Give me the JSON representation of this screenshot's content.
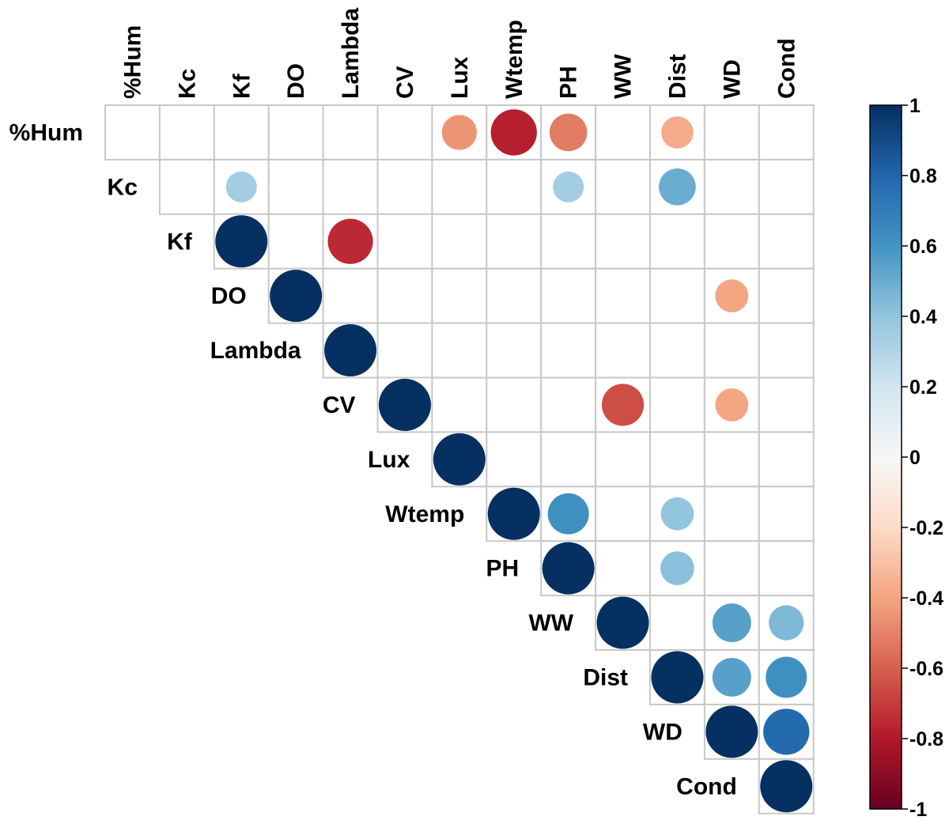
{
  "chart_data": {
    "type": "heatmap",
    "subtype": "correlation-circles-upper-triangle",
    "variables": [
      "%Hum",
      "Kc",
      "Kf",
      "DO",
      "Lambda",
      "CV",
      "Lux",
      "Wtemp",
      "PH",
      "WW",
      "Dist",
      "WD",
      "Cond"
    ],
    "row_labels": [
      "%Hum",
      "Kc",
      "Kf",
      "DO",
      "Lambda",
      "CV",
      "Lux",
      "Wtemp",
      "PH",
      "WW",
      "Dist",
      "WD",
      "Cond"
    ],
    "column_labels": [
      "%Hum",
      "Kc",
      "Kf",
      "DO",
      "Lambda",
      "CV",
      "Lux",
      "Wtemp",
      "PH",
      "WW",
      "Dist",
      "WD",
      "Cond"
    ],
    "cells": [
      {
        "row": "%Hum",
        "col": "Lux",
        "value": -0.45
      },
      {
        "row": "%Hum",
        "col": "Wtemp",
        "value": -0.78
      },
      {
        "row": "%Hum",
        "col": "PH",
        "value": -0.52
      },
      {
        "row": "%Hum",
        "col": "Dist",
        "value": -0.38
      },
      {
        "row": "Kc",
        "col": "Kf",
        "value": 0.35
      },
      {
        "row": "Kc",
        "col": "PH",
        "value": 0.35
      },
      {
        "row": "Kc",
        "col": "Dist",
        "value": 0.5
      },
      {
        "row": "Kf",
        "col": "Kf",
        "value": 1
      },
      {
        "row": "Kf",
        "col": "Lambda",
        "value": -0.75
      },
      {
        "row": "DO",
        "col": "DO",
        "value": 1
      },
      {
        "row": "DO",
        "col": "WD",
        "value": -0.4
      },
      {
        "row": "Lambda",
        "col": "Lambda",
        "value": 1
      },
      {
        "row": "CV",
        "col": "CV",
        "value": 1
      },
      {
        "row": "CV",
        "col": "WW",
        "value": -0.65
      },
      {
        "row": "CV",
        "col": "WD",
        "value": -0.4
      },
      {
        "row": "Lux",
        "col": "Lux",
        "value": 1
      },
      {
        "row": "Wtemp",
        "col": "Wtemp",
        "value": 1
      },
      {
        "row": "Wtemp",
        "col": "PH",
        "value": 0.62
      },
      {
        "row": "Wtemp",
        "col": "Dist",
        "value": 0.4
      },
      {
        "row": "PH",
        "col": "PH",
        "value": 1
      },
      {
        "row": "PH",
        "col": "Dist",
        "value": 0.42
      },
      {
        "row": "WW",
        "col": "WW",
        "value": 1
      },
      {
        "row": "WW",
        "col": "WD",
        "value": 0.55
      },
      {
        "row": "WW",
        "col": "Cond",
        "value": 0.45
      },
      {
        "row": "Dist",
        "col": "Dist",
        "value": 1
      },
      {
        "row": "Dist",
        "col": "WD",
        "value": 0.55
      },
      {
        "row": "Dist",
        "col": "Cond",
        "value": 0.62
      },
      {
        "row": "WD",
        "col": "WD",
        "value": 1
      },
      {
        "row": "WD",
        "col": "Cond",
        "value": 0.78
      },
      {
        "row": "Cond",
        "col": "Cond",
        "value": 1
      }
    ],
    "colorbar": {
      "range": [
        -1,
        1
      ],
      "ticks": [
        "1",
        "0.8",
        "0.6",
        "0.4",
        "0.2",
        "0",
        "-0.2",
        "-0.4",
        "-0.6",
        "-0.8",
        "-1"
      ],
      "colors": {
        "neg_1": "#67001f",
        "neg_0_8": "#b2182b",
        "neg_0_6": "#d6604d",
        "neg_0_4": "#f4a582",
        "neg_0_2": "#fddbc7",
        "zero": "#f7f7f7",
        "pos_0_2": "#d1e5f0",
        "pos_0_4": "#92c5de",
        "pos_0_6": "#4393c3",
        "pos_0_8": "#2166ac",
        "pos_1": "#053061"
      }
    },
    "grid": true,
    "legend_placement": "right"
  }
}
